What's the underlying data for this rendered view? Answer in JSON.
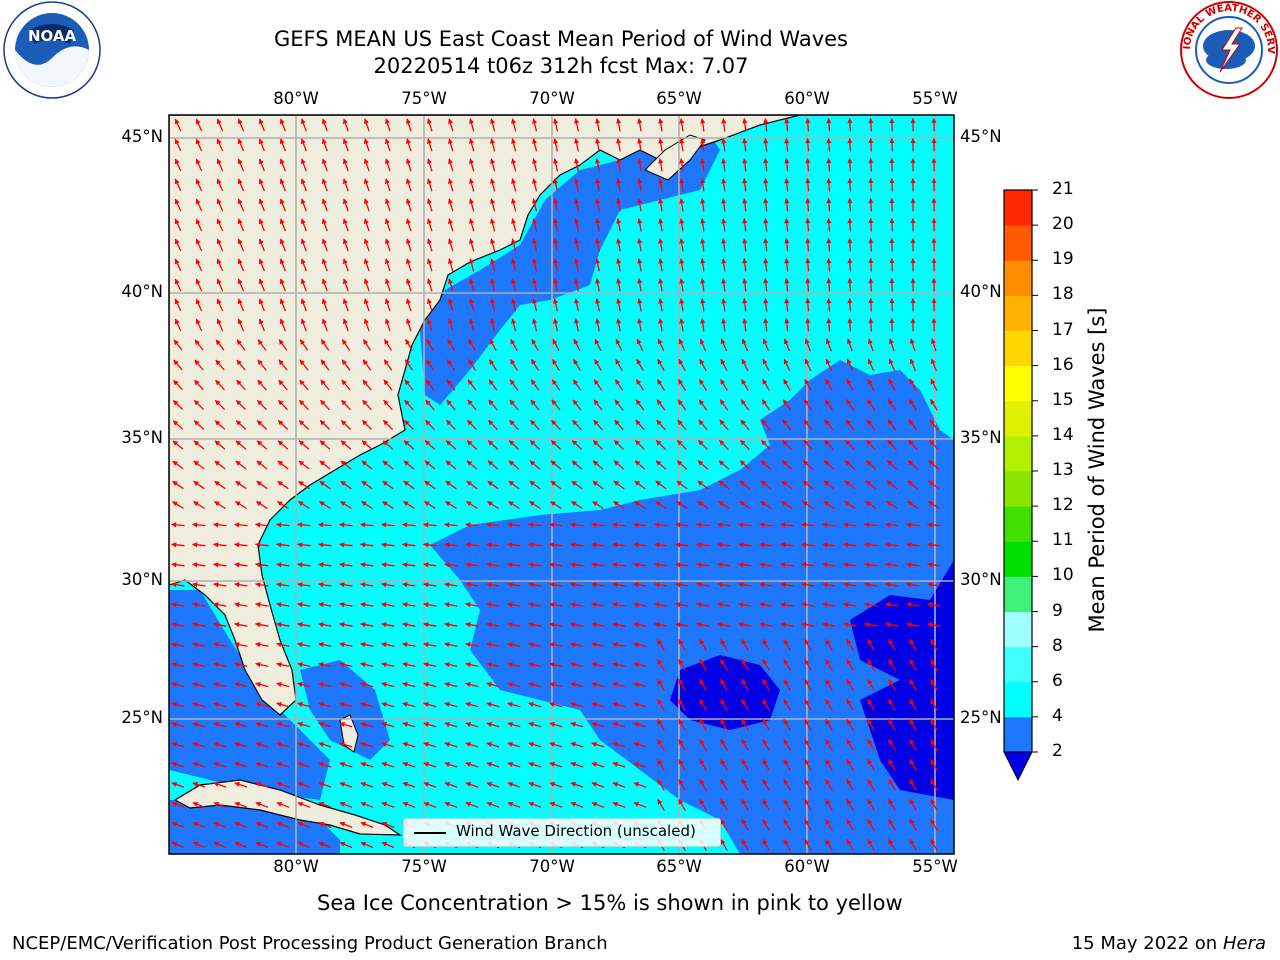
{
  "title": {
    "line1": "GEFS MEAN US East Coast Mean Period of Wind Waves",
    "line2": "20220514 t06z 312h fcst   Max: 7.07"
  },
  "logos": {
    "noaa_left": "NOAA",
    "nws_right": "NATIONAL WEATHER SERVICE"
  },
  "map": {
    "lon_labels": [
      "80°W",
      "75°W",
      "70°W",
      "65°W",
      "60°W",
      "55°W"
    ],
    "lat_labels": [
      "45°N",
      "40°N",
      "35°N",
      "30°N",
      "25°N"
    ],
    "legend_text": "Wind Wave Direction (unscaled)",
    "colors": {
      "land": "#efedde",
      "level_0_2": "#0000e6",
      "level_2_4": "#1e78ff",
      "level_4_6": "#00ffff",
      "arrow": "#ff0000",
      "grid": "#b0b0b0"
    }
  },
  "colorbar": {
    "label": "Mean Period of Wind Waves [s]",
    "ticks": [
      "2",
      "4",
      "6",
      "8",
      "9",
      "10",
      "11",
      "12",
      "13",
      "14",
      "15",
      "16",
      "17",
      "18",
      "19",
      "20",
      "21"
    ],
    "colors": [
      "#1e78ff",
      "#00ffff",
      "#40ffff",
      "#a0ffff",
      "#3ff07a",
      "#00e000",
      "#40e000",
      "#88e600",
      "#b0f000",
      "#e0f000",
      "#ffff00",
      "#ffd700",
      "#ffb300",
      "#ff8c00",
      "#ff5a00",
      "#ff2800",
      "#ff0000"
    ],
    "extend_color": "#0000e6"
  },
  "footer": {
    "sea_ice": "Sea Ice Concentration > 15% is shown in pink to yellow",
    "left": "NCEP/EMC/Verification Post Processing Product Generation Branch",
    "right_date": "15 May 2022 on",
    "right_host": "Hera"
  }
}
